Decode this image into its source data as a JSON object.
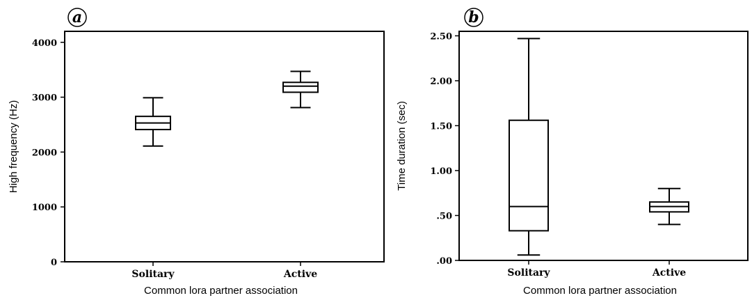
{
  "chart_data": [
    {
      "type": "box",
      "panel_label": "a",
      "xlabel": "Common lora partner association",
      "ylabel": "High frequency (Hz)",
      "ylim": [
        0,
        4200
      ],
      "yticks": [
        0,
        1000,
        2000,
        3000,
        4000
      ],
      "ytick_labels": [
        "0",
        "1000",
        "2000",
        "3000",
        "4000"
      ],
      "categories": [
        "Solitary",
        "Active"
      ],
      "boxes": [
        {
          "min": 2110,
          "q1": 2410,
          "median": 2530,
          "q3": 2650,
          "max": 2990
        },
        {
          "min": 2810,
          "q1": 3090,
          "median": 3200,
          "q3": 3270,
          "max": 3470
        }
      ],
      "grid": false
    },
    {
      "type": "box",
      "panel_label": "b",
      "xlabel": "Common lora partner association",
      "ylabel": "Time duration (sec)",
      "ylim": [
        0,
        2.55
      ],
      "yticks": [
        0,
        0.5,
        1.0,
        1.5,
        2.0,
        2.5
      ],
      "ytick_labels": [
        ".00",
        ".50",
        "1.00",
        "1.50",
        "2.00",
        "2.50"
      ],
      "categories": [
        "Solitary",
        "Active"
      ],
      "boxes": [
        {
          "min": 0.06,
          "q1": 0.33,
          "median": 0.6,
          "q3": 1.56,
          "max": 2.47
        },
        {
          "min": 0.4,
          "q1": 0.54,
          "median": 0.6,
          "q3": 0.65,
          "max": 0.8
        }
      ],
      "grid": false
    }
  ]
}
